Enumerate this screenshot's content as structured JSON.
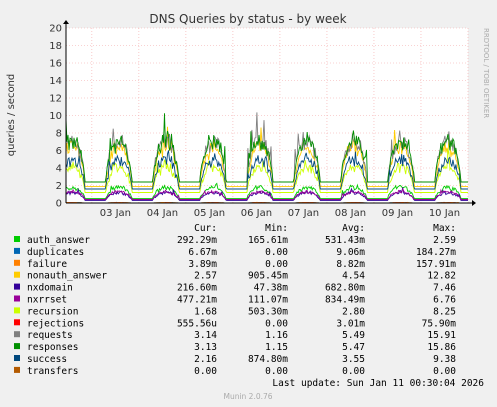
{
  "chart_data": {
    "type": "line",
    "title": "DNS Queries by status - by week",
    "ylabel": "queries / second",
    "side_label": "RRDTOOL / TOBI OETIKER",
    "ylim": [
      0,
      20
    ],
    "yticks": [
      0,
      2,
      4,
      6,
      8,
      10,
      12,
      14,
      16,
      18,
      20
    ],
    "xticks": [
      "03 Jan",
      "04 Jan",
      "05 Jan",
      "06 Jan",
      "07 Jan",
      "08 Jan",
      "09 Jan",
      "10 Jan"
    ],
    "grid": true,
    "legend_headers": [
      "Cur:",
      "Min:",
      "Avg:",
      "Max:"
    ],
    "series": [
      {
        "name": "auth_answer",
        "color": "#00cc00",
        "cur": "292.29m",
        "min": "165.61m",
        "avg": "531.43m",
        "max": "2.59",
        "base": 0.5,
        "peak": 1.8
      },
      {
        "name": "duplicates",
        "color": "#0066b3",
        "cur": "6.67m",
        "min": "0.00",
        "avg": "9.06m",
        "max": "184.27m",
        "base": 0.0,
        "peak": 0.05
      },
      {
        "name": "failure",
        "color": "#ff8000",
        "cur": "3.89m",
        "min": "0.00",
        "avg": "8.82m",
        "max": "157.91m",
        "base": 0.0,
        "peak": 0.05
      },
      {
        "name": "nonauth_answer",
        "color": "#ffcc00",
        "cur": "2.57",
        "min": "905.45m",
        "avg": "4.54",
        "max": "12.82",
        "base": 1.9,
        "peak": 6.5
      },
      {
        "name": "nxdomain",
        "color": "#330099",
        "cur": "216.60m",
        "min": "47.38m",
        "avg": "682.80m",
        "max": "7.46",
        "base": 0.3,
        "peak": 1.2
      },
      {
        "name": "nxrrset",
        "color": "#990099",
        "cur": "477.21m",
        "min": "111.07m",
        "avg": "834.49m",
        "max": "6.76",
        "base": 0.4,
        "peak": 1.3
      },
      {
        "name": "recursion",
        "color": "#ccff00",
        "cur": "1.68",
        "min": "503.30m",
        "avg": "2.80",
        "max": "8.25",
        "base": 1.2,
        "peak": 4.2
      },
      {
        "name": "rejections",
        "color": "#ff0000",
        "cur": "555.56u",
        "min": "0.00",
        "avg": "3.01m",
        "max": "75.90m",
        "base": 0.0,
        "peak": 0.02
      },
      {
        "name": "requests",
        "color": "#808080",
        "cur": "3.14",
        "min": "1.16",
        "avg": "5.49",
        "max": "15.91",
        "base": 2.4,
        "peak": 7.2
      },
      {
        "name": "responses",
        "color": "#008f00",
        "cur": "3.13",
        "min": "1.15",
        "avg": "5.47",
        "max": "15.86",
        "base": 2.4,
        "peak": 7.2
      },
      {
        "name": "success",
        "color": "#00487d",
        "cur": "2.16",
        "min": "874.80m",
        "avg": "3.55",
        "max": "9.38",
        "base": 1.6,
        "peak": 5.0
      },
      {
        "name": "transfers",
        "color": "#b35a00",
        "cur": "0.00",
        "min": "0.00",
        "avg": "0.00",
        "max": "0.00",
        "base": 0.0,
        "peak": 0.0
      }
    ],
    "last_update": "Last update: Sun Jan 11 00:30:04 2026",
    "footer": "Munin 2.0.76"
  }
}
